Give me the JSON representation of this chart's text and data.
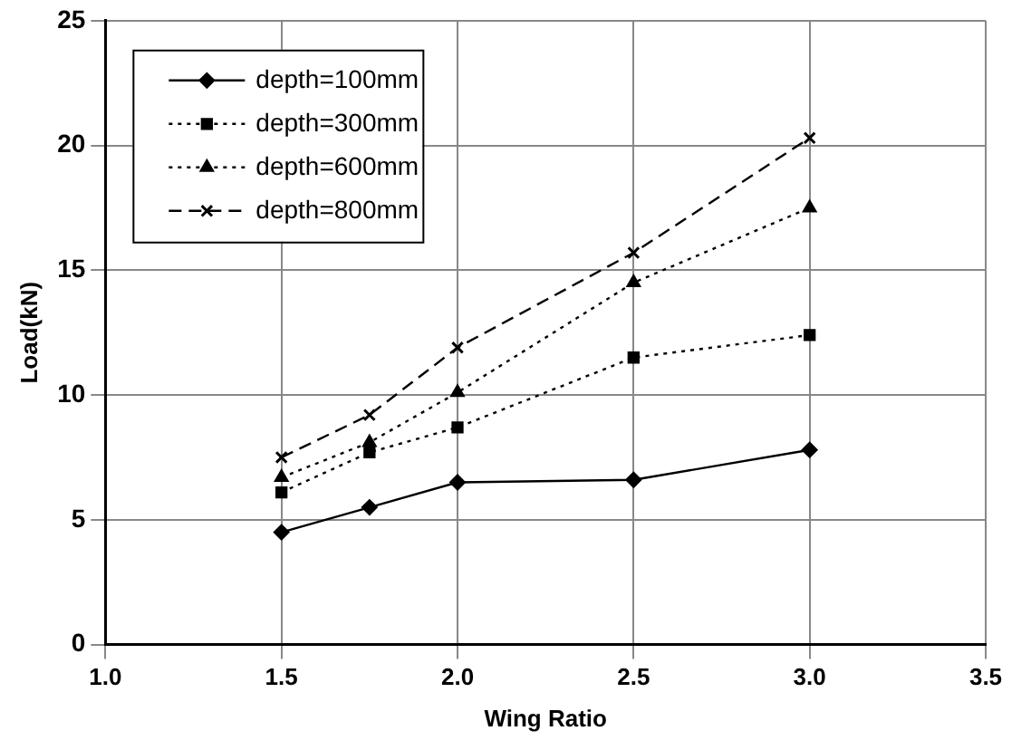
{
  "chart_data": {
    "type": "line",
    "xlabel": "Wing Ratio",
    "ylabel": "Load(kN)",
    "xlim": [
      1.0,
      3.5
    ],
    "xticks": [
      {
        "value": 1,
        "label": "1.0"
      },
      {
        "value": 1.5,
        "label": "1.5"
      },
      {
        "value": 2,
        "label": "2.0"
      },
      {
        "value": 2.5,
        "label": "2.5"
      },
      {
        "value": 3,
        "label": "3.0"
      },
      {
        "value": 3.5,
        "label": "3.5"
      }
    ],
    "ylim": [
      0,
      25
    ],
    "yticks": [
      0,
      5,
      10,
      15,
      20,
      25
    ],
    "grid": true,
    "legend": "top left",
    "x": [
      1.5,
      1.75,
      2.0,
      2.5,
      3.0
    ],
    "series": [
      {
        "name": "depth=100mm",
        "color": "#000000",
        "marker": "diamond",
        "line_style": "solid",
        "values": [
          4.5,
          5.5,
          6.5,
          6.6,
          7.8
        ]
      },
      {
        "name": "depth=300mm",
        "color": "#000000",
        "marker": "square",
        "line_style": "dotted",
        "values": [
          6.1,
          7.7,
          8.7,
          11.5,
          12.4
        ]
      },
      {
        "name": "depth=600mm",
        "color": "#000000",
        "marker": "triangle",
        "line_style": "dotted",
        "values": [
          6.7,
          8.1,
          10.1,
          14.5,
          17.5
        ]
      },
      {
        "name": "depth=800mm",
        "color": "#000000",
        "marker": "cross",
        "line_style": "dashed",
        "values": [
          7.5,
          9.2,
          11.9,
          15.7,
          20.3
        ]
      }
    ]
  }
}
